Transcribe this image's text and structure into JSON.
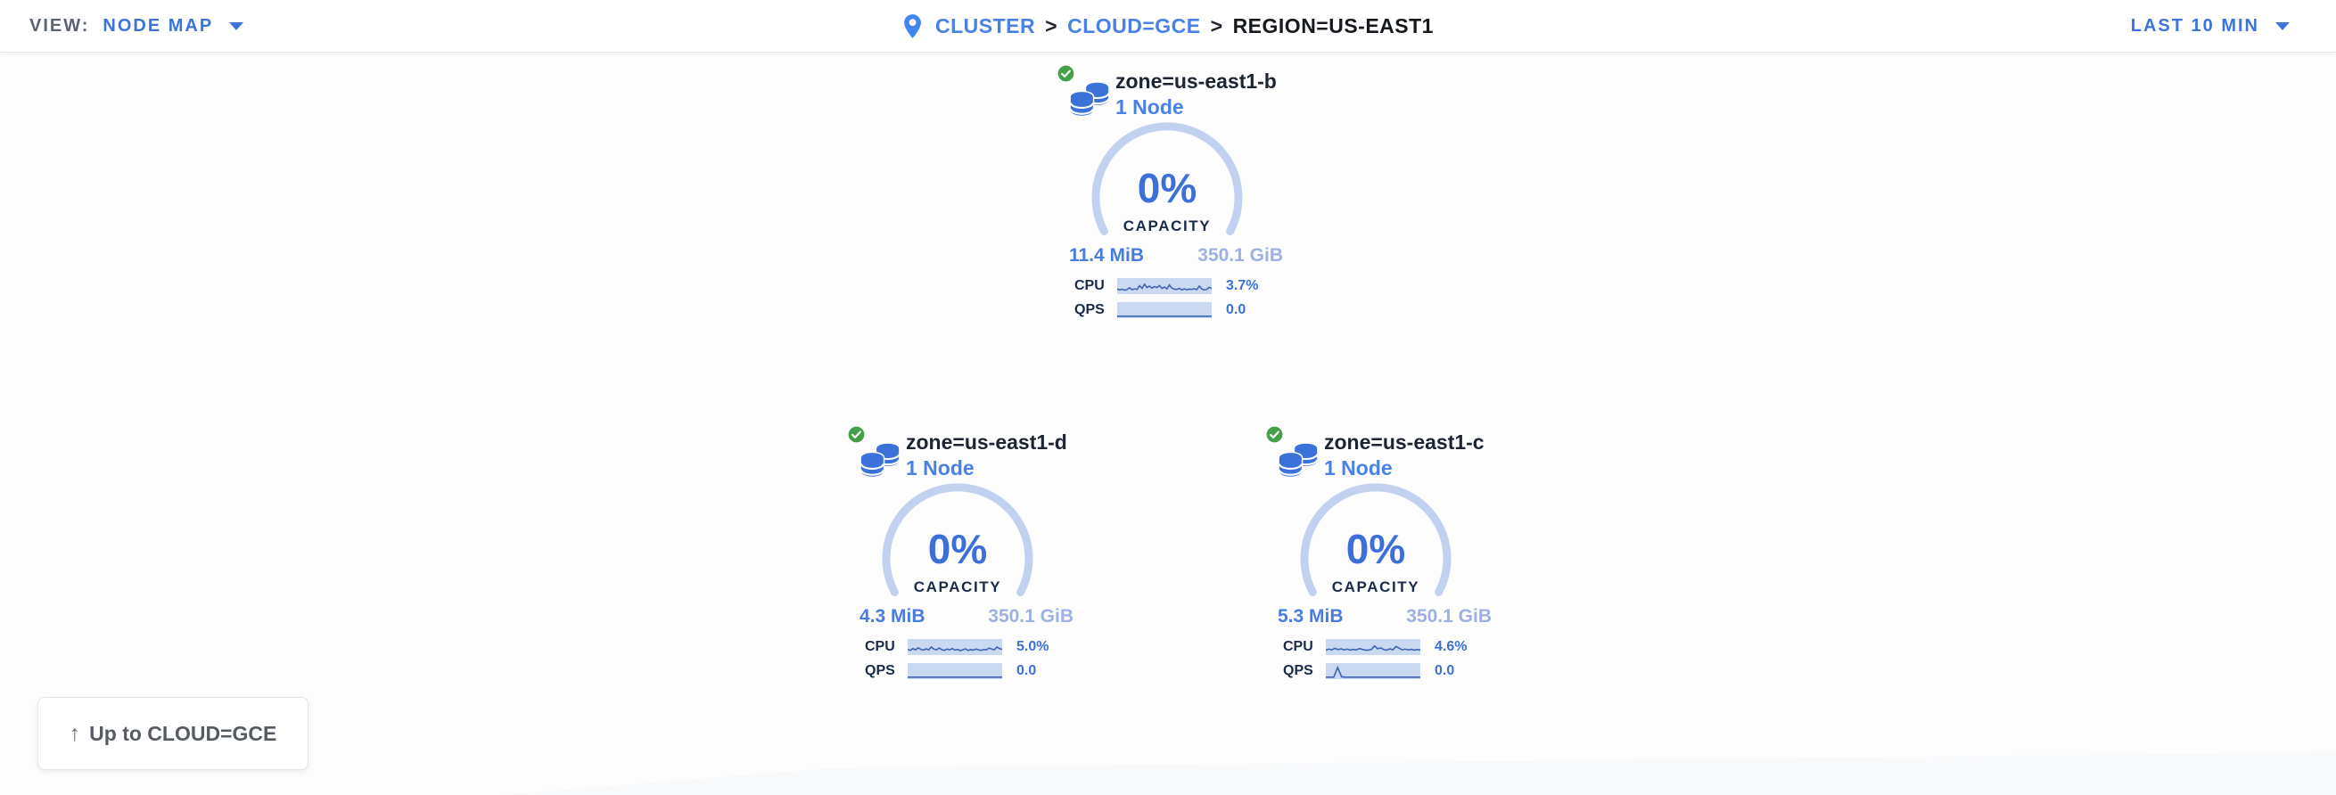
{
  "header": {
    "view_label": "VIEW:",
    "view_value": "NODE MAP",
    "separator": ">",
    "breadcrumb": [
      {
        "label": "CLUSTER"
      },
      {
        "label": "CLOUD=GCE"
      },
      {
        "label": "REGION=US-EAST1"
      }
    ],
    "time_range": "LAST 10 MIN"
  },
  "zones": [
    {
      "name": "zone=us-east1-b",
      "node_count": "1 Node",
      "status": "healthy",
      "capacity_pct": "0%",
      "capacity_label": "CAPACITY",
      "capacity_used": "11.4 MiB",
      "capacity_total": "350.1 GiB",
      "cpu_label": "CPU",
      "cpu_value": "3.7%",
      "qps_label": "QPS",
      "qps_value": "0.0",
      "cpu_sparkline": [
        0.3,
        0.22,
        0.28,
        0.2,
        0.26,
        0.38,
        0.24,
        0.3,
        0.26,
        0.55,
        0.34,
        0.66,
        0.4,
        0.52,
        0.36,
        0.48,
        0.4,
        0.56,
        0.34,
        0.44,
        0.3,
        0.6,
        0.36,
        0.28,
        0.26,
        0.34,
        0.22,
        0.3,
        0.24,
        0.28,
        0.26,
        0.32,
        0.24,
        0.52,
        0.3,
        0.22,
        0.26,
        0.42,
        0.34
      ],
      "qps_sparkline": [
        0.05,
        0.05,
        0.05,
        0.05,
        0.05,
        0.05,
        0.05,
        0.05,
        0.05,
        0.05,
        0.05,
        0.05,
        0.05,
        0.05,
        0.05,
        0.05,
        0.05,
        0.05,
        0.05,
        0.05,
        0.05,
        0.05,
        0.05,
        0.05,
        0.05
      ]
    },
    {
      "name": "zone=us-east1-d",
      "node_count": "1 Node",
      "status": "healthy",
      "capacity_pct": "0%",
      "capacity_label": "CAPACITY",
      "capacity_used": "4.3 MiB",
      "capacity_total": "350.1 GiB",
      "cpu_label": "CPU",
      "cpu_value": "5.0%",
      "qps_label": "QPS",
      "qps_value": "0.0",
      "cpu_sparkline": [
        0.34,
        0.26,
        0.4,
        0.3,
        0.46,
        0.34,
        0.28,
        0.38,
        0.3,
        0.52,
        0.36,
        0.3,
        0.44,
        0.32,
        0.26,
        0.36,
        0.3,
        0.4,
        0.28,
        0.34,
        0.24,
        0.3,
        0.38,
        0.26,
        0.32,
        0.28,
        0.36,
        0.3,
        0.26,
        0.34,
        0.3,
        0.44,
        0.36,
        0.3,
        0.52,
        0.4,
        0.34
      ],
      "qps_sparkline": [
        0.05,
        0.05,
        0.05,
        0.05,
        0.05,
        0.05,
        0.05,
        0.05,
        0.05,
        0.05,
        0.05,
        0.05,
        0.05,
        0.05,
        0.05,
        0.05,
        0.05,
        0.05,
        0.05,
        0.05,
        0.05,
        0.05,
        0.05,
        0.05,
        0.05
      ]
    },
    {
      "name": "zone=us-east1-c",
      "node_count": "1 Node",
      "status": "healthy",
      "capacity_pct": "0%",
      "capacity_label": "CAPACITY",
      "capacity_used": "5.3 MiB",
      "capacity_total": "350.1 GiB",
      "cpu_label": "CPU",
      "cpu_value": "4.6%",
      "qps_label": "QPS",
      "qps_value": "0.0",
      "cpu_sparkline": [
        0.28,
        0.36,
        0.3,
        0.42,
        0.32,
        0.38,
        0.3,
        0.36,
        0.28,
        0.34,
        0.3,
        0.4,
        0.34,
        0.28,
        0.28,
        0.34,
        0.6,
        0.38,
        0.46,
        0.32,
        0.28,
        0.38,
        0.3,
        0.56,
        0.44,
        0.3,
        0.36,
        0.3,
        0.34,
        0.28,
        0.32,
        0.3
      ],
      "qps_sparkline": [
        0.05,
        0.05,
        0.05,
        0.8,
        0.08,
        0.05,
        0.05,
        0.05,
        0.05,
        0.05,
        0.05,
        0.05,
        0.05,
        0.05,
        0.05,
        0.05,
        0.05,
        0.05,
        0.05,
        0.05,
        0.05,
        0.05,
        0.05,
        0.05,
        0.05
      ]
    }
  ],
  "up_button": {
    "label": "Up to CLOUD=GCE"
  },
  "colors": {
    "link_blue": "#4a81e4",
    "accent_blue": "#3d74dc",
    "value_blue": "#3c70d8",
    "total_pale_blue": "#9db1e4",
    "arc_blue": "#c3d1f0",
    "sparkline_bg": "#cbd8f2",
    "sparkline_stroke": "#3f65b0",
    "navy_text": "#1a2b4a",
    "healthy_green": "#43a047"
  }
}
